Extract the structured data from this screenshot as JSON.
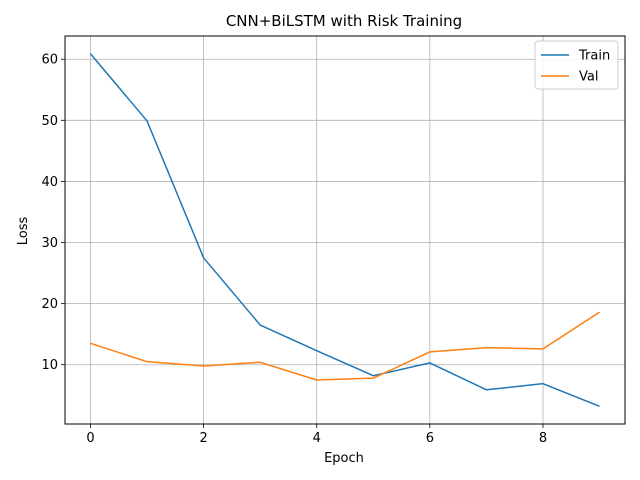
{
  "chart_data": {
    "type": "line",
    "title": "CNN+BiLSTM with Risk Training",
    "xlabel": "Epoch",
    "ylabel": "Loss",
    "x": [
      0,
      1,
      2,
      3,
      4,
      5,
      6,
      7,
      8,
      9
    ],
    "xlim": [
      -0.45,
      9.45
    ],
    "ylim": [
      0.3,
      63.8
    ],
    "xticks": [
      0,
      2,
      4,
      6,
      8
    ],
    "yticks": [
      10,
      20,
      30,
      40,
      50,
      60
    ],
    "grid": true,
    "legend_position": "top-right",
    "series": [
      {
        "name": "Train",
        "color": "#1f77b4",
        "values": [
          60.9,
          49.9,
          27.5,
          16.5,
          12.3,
          8.2,
          10.3,
          5.9,
          6.9,
          3.2
        ]
      },
      {
        "name": "Val",
        "color": "#ff7f0e",
        "values": [
          13.5,
          10.5,
          9.8,
          10.4,
          7.5,
          7.8,
          12.1,
          12.8,
          12.6,
          18.6
        ]
      }
    ]
  }
}
